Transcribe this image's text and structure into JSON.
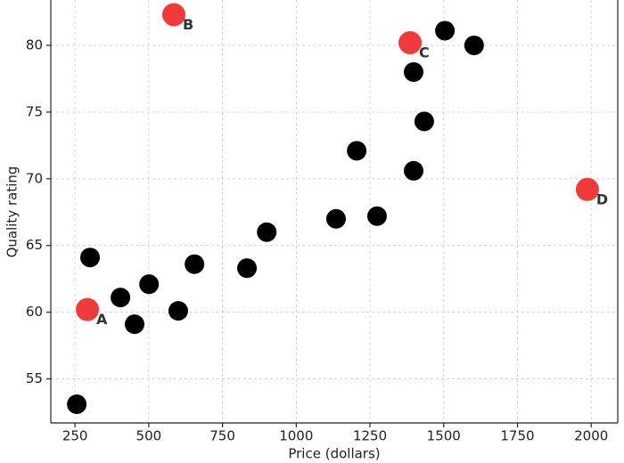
{
  "chart_data": {
    "type": "scatter",
    "x_label": "Price (dollars)",
    "y_label": "Quality rating",
    "xlim": [
      168,
      2090
    ],
    "ylim": [
      51.7,
      83.4
    ],
    "xticks": [
      250,
      500,
      750,
      1000,
      1250,
      1500,
      1750,
      2000
    ],
    "yticks": [
      55,
      60,
      65,
      70,
      75,
      80
    ],
    "grid": true,
    "series": [
      {
        "color": "#000000",
        "x": [
          256,
          301,
          404,
          452,
          501,
          600,
          655,
          833,
          900,
          1135,
          1274,
          1205,
          1398,
          1434,
          1398,
          1504,
          1603
        ],
        "values": [
          53.1,
          64.1,
          61.1,
          59.1,
          62.1,
          60.1,
          63.6,
          63.3,
          66.0,
          67.0,
          67.2,
          72.1,
          70.6,
          74.3,
          78.0,
          81.1,
          80.0
        ]
      },
      {
        "color": "#f03030",
        "x": [
          292,
          585,
          1386,
          1987
        ],
        "values": [
          60.2,
          82.3,
          80.2,
          69.2
        ],
        "labels": [
          "A",
          "B",
          "C",
          "D"
        ]
      }
    ]
  }
}
